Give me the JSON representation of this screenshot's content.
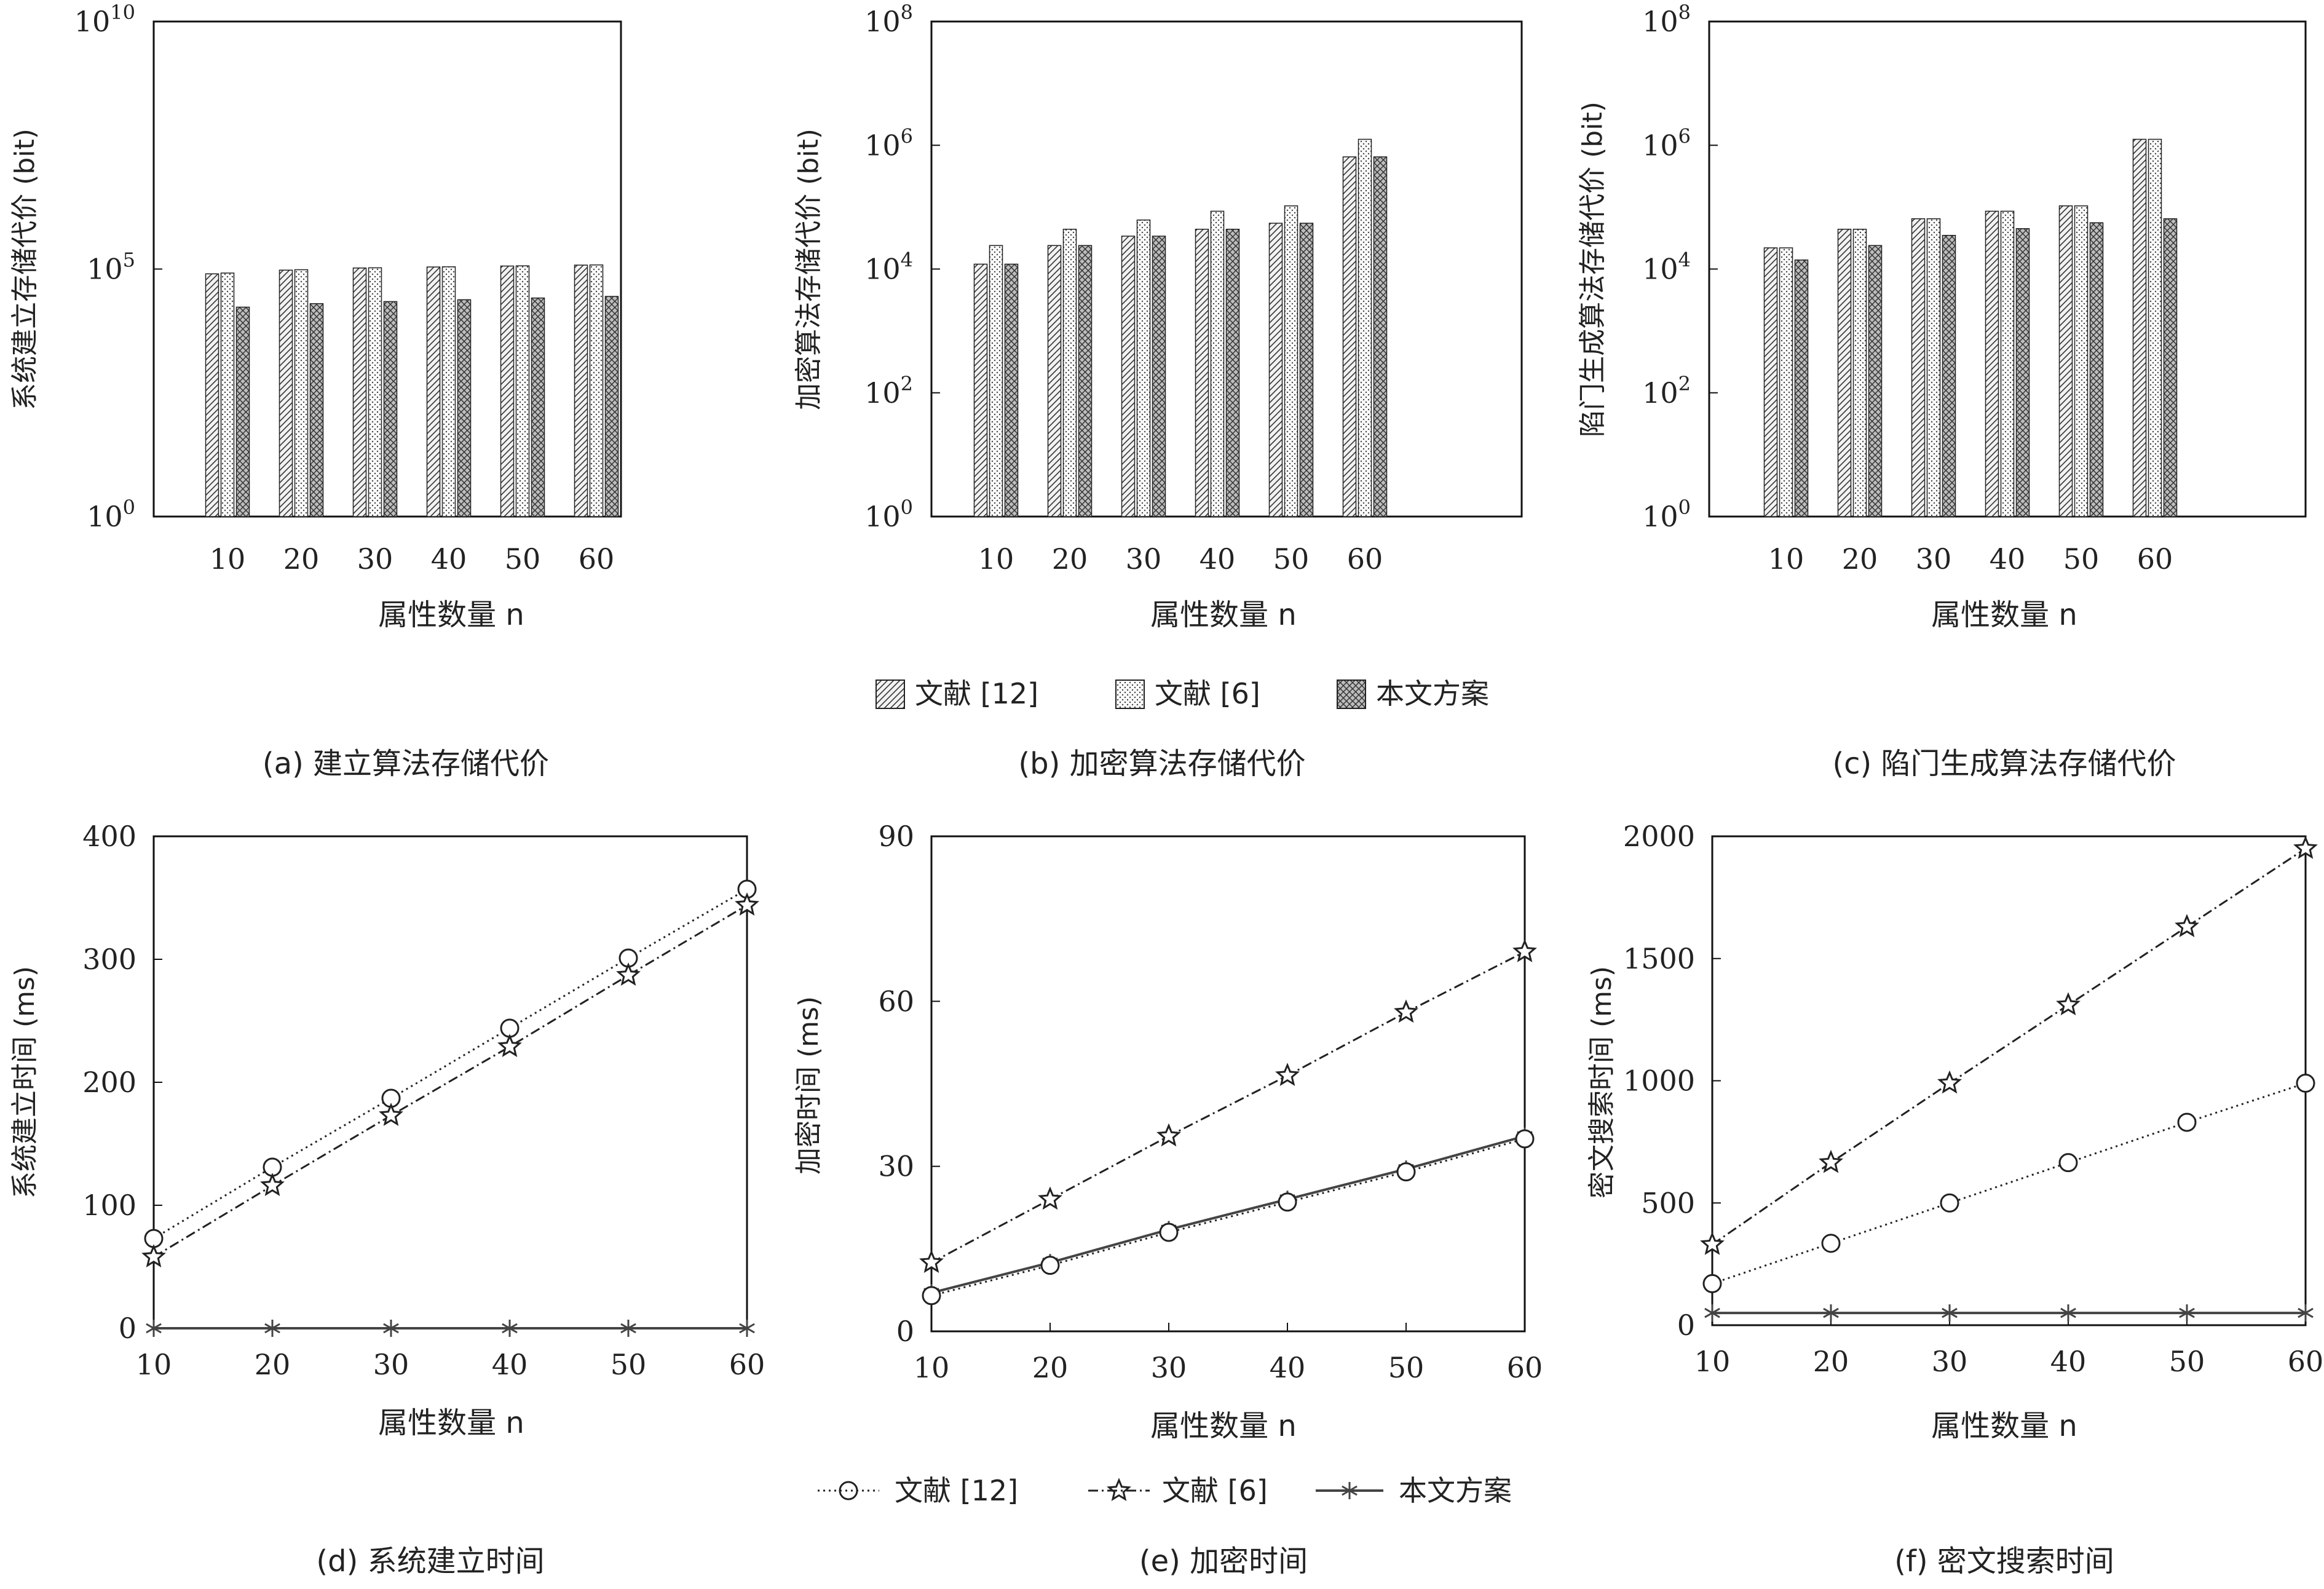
{
  "legend_top": [
    {
      "label": "文献 [12]",
      "pattern": "hatch-diag"
    },
    {
      "label": "文献 [6]",
      "pattern": "hatch-dots"
    },
    {
      "label": "本文方案",
      "pattern": "hatch-cross"
    }
  ],
  "legend_bottom": [
    {
      "label": "文献 [12]",
      "marker": "circle",
      "dash": "dotted"
    },
    {
      "label": "文献 [6]",
      "marker": "star",
      "dash": "dashdot"
    },
    {
      "label": "本文方案",
      "marker": "asterisk",
      "dash": "solid"
    }
  ],
  "chart_data": [
    {
      "id": "a",
      "type": "bar",
      "scale": "log",
      "caption": "(a) 建立算法存储代价",
      "xlabel": "属性数量 n",
      "ylabel": "系统建立存储代价 (bit)",
      "categories": [
        "10",
        "20",
        "30",
        "40",
        "50",
        "60"
      ],
      "ylim": [
        1,
        10000000000
      ],
      "yticks": [
        {
          "base": "10",
          "exp": "0",
          "value": 1
        },
        {
          "base": "10",
          "exp": "5",
          "value": 100000
        },
        {
          "base": "10",
          "exp": "10",
          "value": 10000000000
        }
      ],
      "series": [
        {
          "name": "文献 [12]",
          "values": [
            80000,
            95000,
            105000,
            110000,
            115000,
            120000
          ]
        },
        {
          "name": "文献 [6]",
          "values": [
            83000,
            97000,
            106000,
            111000,
            116000,
            121000
          ]
        },
        {
          "name": "本文方案",
          "values": [
            17000,
            20000,
            22000,
            24000,
            26000,
            28000
          ]
        }
      ]
    },
    {
      "id": "b",
      "type": "bar",
      "scale": "log",
      "caption": "(b) 加密算法存储代价",
      "xlabel": "属性数量 n",
      "ylabel": "加密算法存储代价 (bit)",
      "categories": [
        "10",
        "20",
        "30",
        "40",
        "50",
        "60"
      ],
      "ylim": [
        1,
        100000000
      ],
      "yticks": [
        {
          "base": "10",
          "exp": "0",
          "value": 1
        },
        {
          "base": "10",
          "exp": "2",
          "value": 100
        },
        {
          "base": "10",
          "exp": "4",
          "value": 10000
        },
        {
          "base": "10",
          "exp": "6",
          "value": 1000000
        },
        {
          "base": "10",
          "exp": "8",
          "value": 100000000
        }
      ],
      "series": [
        {
          "name": "文献 [12]",
          "values": [
            12000,
            24000,
            34000,
            44000,
            55000,
            650000
          ]
        },
        {
          "name": "文献 [6]",
          "values": [
            24000,
            44000,
            62000,
            86000,
            105000,
            1250000
          ]
        },
        {
          "name": "本文方案",
          "values": [
            12000,
            24000,
            34000,
            44000,
            55000,
            650000
          ]
        }
      ]
    },
    {
      "id": "c",
      "type": "bar",
      "scale": "log",
      "caption": "(c) 陷门生成算法存储代价",
      "xlabel": "属性数量 n",
      "ylabel": "陷门生成算法存储代价 (bit)",
      "categories": [
        "10",
        "20",
        "30",
        "40",
        "50",
        "60"
      ],
      "ylim": [
        1,
        100000000
      ],
      "yticks": [
        {
          "base": "10",
          "exp": "0",
          "value": 1
        },
        {
          "base": "10",
          "exp": "2",
          "value": 100
        },
        {
          "base": "10",
          "exp": "4",
          "value": 10000
        },
        {
          "base": "10",
          "exp": "6",
          "value": 1000000
        },
        {
          "base": "10",
          "exp": "8",
          "value": 100000000
        }
      ],
      "series": [
        {
          "name": "文献 [12]",
          "values": [
            22000,
            44000,
            65000,
            86000,
            105000,
            1250000
          ]
        },
        {
          "name": "文献 [6]",
          "values": [
            22000,
            44000,
            65000,
            86000,
            105000,
            1250000
          ]
        },
        {
          "name": "本文方案",
          "values": [
            14000,
            24000,
            35000,
            45000,
            56000,
            65000
          ]
        }
      ]
    },
    {
      "id": "d",
      "type": "line",
      "caption": "(d) 系统建立时间",
      "xlabel": "属性数量 n",
      "ylabel": "系统建立时间 (ms)",
      "x": [
        10,
        20,
        30,
        40,
        50,
        60
      ],
      "xlim": [
        10,
        60
      ],
      "ylim": [
        0,
        400
      ],
      "yticks": [
        0,
        100,
        200,
        300,
        400
      ],
      "series": [
        {
          "name": "文献 [12]",
          "values": [
            73,
            131,
            187,
            244,
            301,
            357
          ]
        },
        {
          "name": "文献 [6]",
          "values": [
            58,
            116,
            173,
            229,
            287,
            344
          ]
        },
        {
          "name": "本文方案",
          "values": [
            0,
            0,
            0,
            0,
            0,
            0
          ]
        }
      ]
    },
    {
      "id": "e",
      "type": "line",
      "caption": "(e) 加密时间",
      "xlabel": "属性数量 n",
      "ylabel": "加密时间 (ms)",
      "x": [
        10,
        20,
        30,
        40,
        50,
        60
      ],
      "xlim": [
        10,
        60
      ],
      "ylim": [
        0,
        90
      ],
      "yticks": [
        0,
        30,
        60,
        90
      ],
      "series": [
        {
          "name": "文献 [12]",
          "values": [
            6.5,
            12,
            18,
            23.5,
            29,
            35
          ]
        },
        {
          "name": "文献 [6]",
          "values": [
            12.5,
            24,
            35.5,
            46.5,
            58,
            69
          ]
        },
        {
          "name": "本文方案",
          "values": [
            7,
            12.5,
            18.5,
            24,
            29.5,
            35.5
          ]
        }
      ]
    },
    {
      "id": "f",
      "type": "line",
      "caption": "(f) 密文搜索时间",
      "xlabel": "属性数量 n",
      "ylabel": "密文搜索时间 (ms)",
      "x": [
        10,
        20,
        30,
        40,
        50,
        60
      ],
      "xlim": [
        10,
        60
      ],
      "ylim": [
        0,
        2000
      ],
      "yticks": [
        0,
        500,
        1000,
        1500,
        2000
      ],
      "series": [
        {
          "name": "文献 [12]",
          "values": [
            170,
            335,
            500,
            665,
            830,
            990
          ]
        },
        {
          "name": "文献 [6]",
          "values": [
            330,
            665,
            990,
            1310,
            1630,
            1950
          ]
        },
        {
          "name": "本文方案",
          "values": [
            50,
            50,
            50,
            50,
            50,
            50
          ]
        }
      ]
    }
  ]
}
